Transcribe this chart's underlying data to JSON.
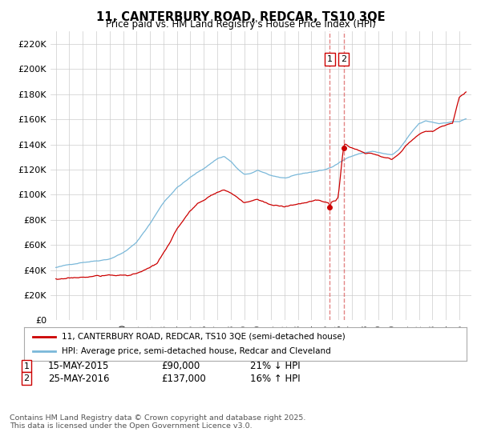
{
  "title": "11, CANTERBURY ROAD, REDCAR, TS10 3QE",
  "subtitle": "Price paid vs. HM Land Registry's House Price Index (HPI)",
  "ylim": [
    0,
    230000
  ],
  "yticks": [
    0,
    20000,
    40000,
    60000,
    80000,
    100000,
    120000,
    140000,
    160000,
    180000,
    200000,
    220000
  ],
  "ytick_labels": [
    "£0",
    "£20K",
    "£40K",
    "£60K",
    "£80K",
    "£100K",
    "£120K",
    "£140K",
    "£160K",
    "£180K",
    "£200K",
    "£220K"
  ],
  "hpi_color": "#7ab8d9",
  "price_color": "#cc0000",
  "transaction1_date": 2015.37,
  "transaction1_price": 90000,
  "transaction2_date": 2016.4,
  "transaction2_price": 137000,
  "legend_line1": "11, CANTERBURY ROAD, REDCAR, TS10 3QE (semi-detached house)",
  "legend_line2": "HPI: Average price, semi-detached house, Redcar and Cleveland",
  "footnote": "Contains HM Land Registry data © Crown copyright and database right 2025.\nThis data is licensed under the Open Government Licence v3.0.",
  "background_color": "#ffffff",
  "grid_color": "#cccccc",
  "xlim_left": 1994.6,
  "xlim_right": 2025.9
}
